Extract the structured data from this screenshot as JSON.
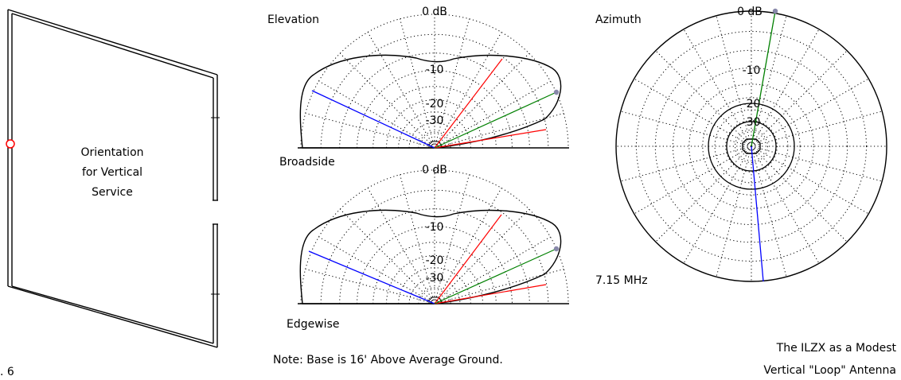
{
  "antenna_panel": {
    "orientation_text_line1": "Orientation",
    "orientation_text_line2": "for Vertical",
    "orientation_text_line3": "Service",
    "figure_number": ". 6"
  },
  "elevation_plots": {
    "top_title": "Elevation",
    "top_zero_db": "0 dB",
    "bottom_title_left": "Broadside",
    "bottom_zero_db": "0 dB",
    "bottom_caption": "Edgewise",
    "ring_labels": [
      "-10",
      "-20",
      "-30"
    ]
  },
  "azimuth_plot": {
    "title": "Azimuth",
    "zero_db": "0 dB",
    "ring_labels": [
      "-10",
      "-20",
      "-30"
    ],
    "frequency": "7.15 MHz"
  },
  "notes": {
    "base_note": "Note: Base is 16' Above Average Ground.",
    "title_line1": "The ILZX as a Modest",
    "title_line2": "Vertical \"Loop\" Antenna"
  },
  "colors": {
    "pattern": "#000000",
    "grid": "#000000",
    "blue_line": "#0000ff",
    "red_line": "#ff0000",
    "green_line": "#008000",
    "feed_marker": "#ff0000",
    "max_marker": "#808080"
  },
  "icons": {
    "feed_point": "red-circle-feed-icon",
    "max_gain_point": "gray-dot-max-icon"
  }
}
